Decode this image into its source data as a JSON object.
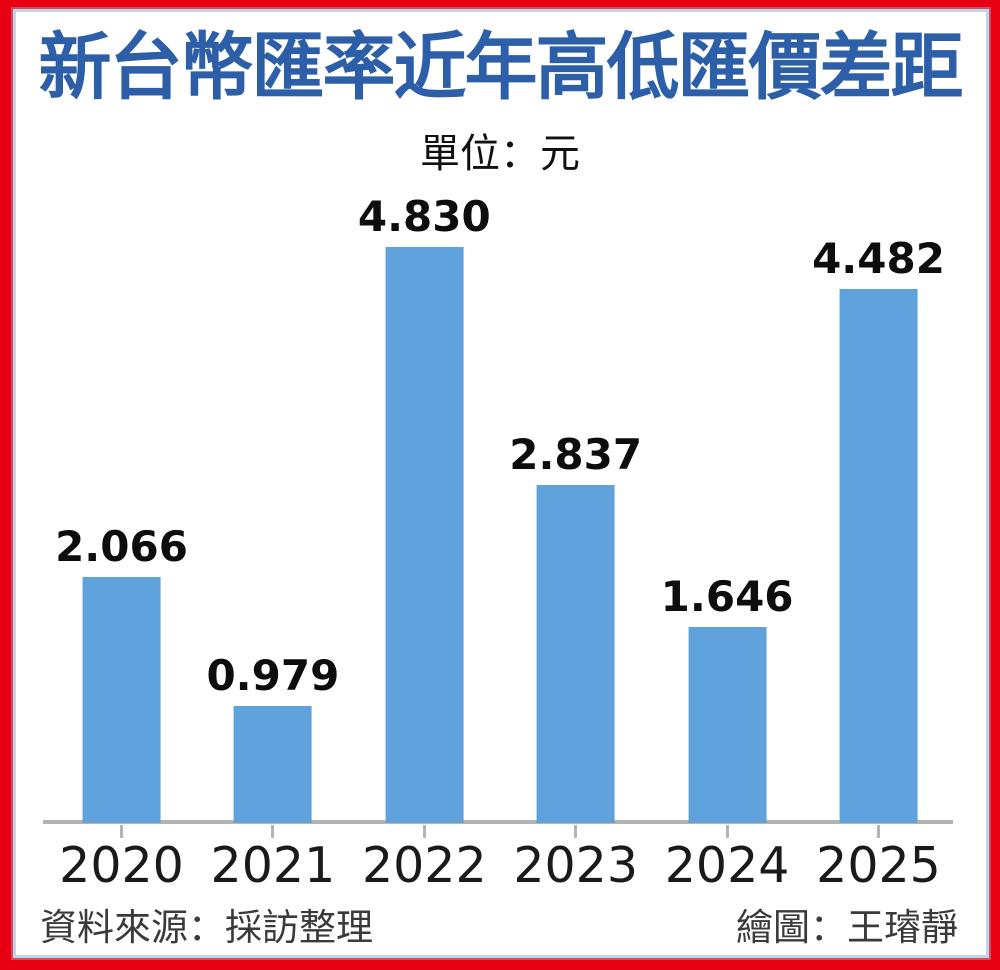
{
  "title": "新台幣匯率近年高低匯價差距",
  "unit_label": "單位：元",
  "footer": {
    "source": "資料來源：採訪整理",
    "credit": "繪圖：王璿靜"
  },
  "colors": {
    "bar": "#60a3dc",
    "title": "#2d5fa9",
    "axis": "#b3b3b3",
    "value_label": "#0d0d0d",
    "frame_outer": "#e60012",
    "frame_inner": "#b9d8ec"
  },
  "chart_data": {
    "type": "bar",
    "title": "新台幣匯率近年高低匯價差距",
    "unit": "單位：元",
    "categories": [
      "2020",
      "2021",
      "2022",
      "2023",
      "2024",
      "2025"
    ],
    "values": [
      2.066,
      0.979,
      4.83,
      2.837,
      1.646,
      4.482
    ],
    "value_labels": [
      "2.066",
      "0.979",
      "4.830",
      "2.837",
      "1.646",
      "4.482"
    ],
    "xlabel": "",
    "ylabel": "",
    "ylim": [
      0,
      5
    ],
    "grid": false,
    "legend": false,
    "bar_color": "#60a3dc"
  }
}
